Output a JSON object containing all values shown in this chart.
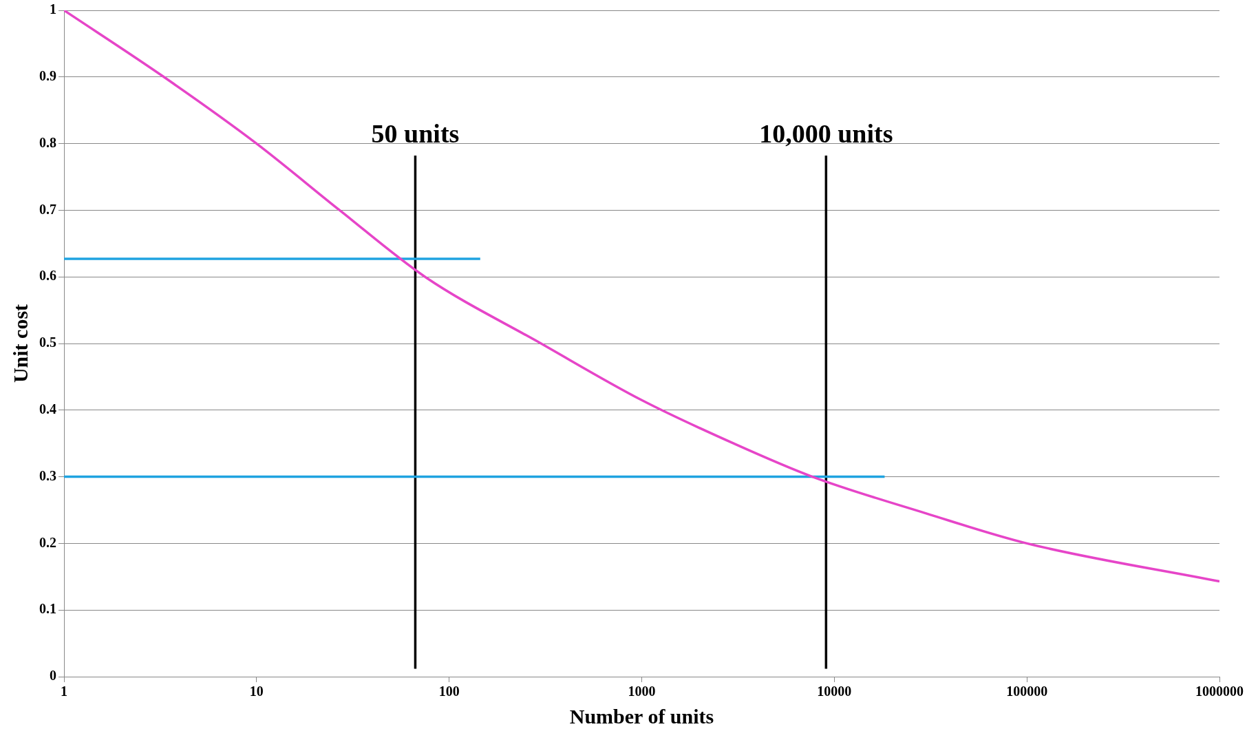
{
  "chart_data": {
    "type": "line",
    "xlabel": "Number of units",
    "ylabel": "Unit cost",
    "log": "x",
    "grid": "y",
    "marker": "none",
    "line_style": "solid",
    "xlim": [
      1,
      1000000
    ],
    "xticks": [
      1,
      10,
      100,
      1000,
      10000,
      100000,
      1000000
    ],
    "ylim": [
      0,
      1
    ],
    "yticks": [
      0,
      0.1,
      0.2,
      0.3,
      0.4,
      0.5,
      0.6,
      0.7,
      0.8,
      0.9,
      1
    ],
    "series": [
      {
        "color": "#e645c8",
        "x": [
          1,
          3.3,
          10,
          27,
          75,
          300,
          1000,
          3000,
          7700,
          30000,
          100000,
          1000000
        ],
        "values": [
          1,
          0.9,
          0.8,
          0.7,
          0.6,
          0.5,
          0.415,
          0.35,
          0.3,
          0.245,
          0.2,
          0.143
        ]
      },
      {
        "color": "#1fa3e0",
        "x": [
          1,
          145
        ],
        "values": [
          0.627,
          0.627
        ]
      },
      {
        "color": "#1fa3e0",
        "x": [
          1,
          18250
        ],
        "values": [
          0.3,
          0.3
        ]
      },
      {
        "color": "#000000",
        "x": [
          66.7,
          66.7
        ],
        "values": [
          0.012,
          0.782
        ]
      },
      {
        "color": "#000000",
        "x": [
          9060,
          9060
        ],
        "values": [
          0.012,
          0.782
        ]
      }
    ],
    "annotations": [
      "50 units",
      "10,000 units"
    ]
  }
}
